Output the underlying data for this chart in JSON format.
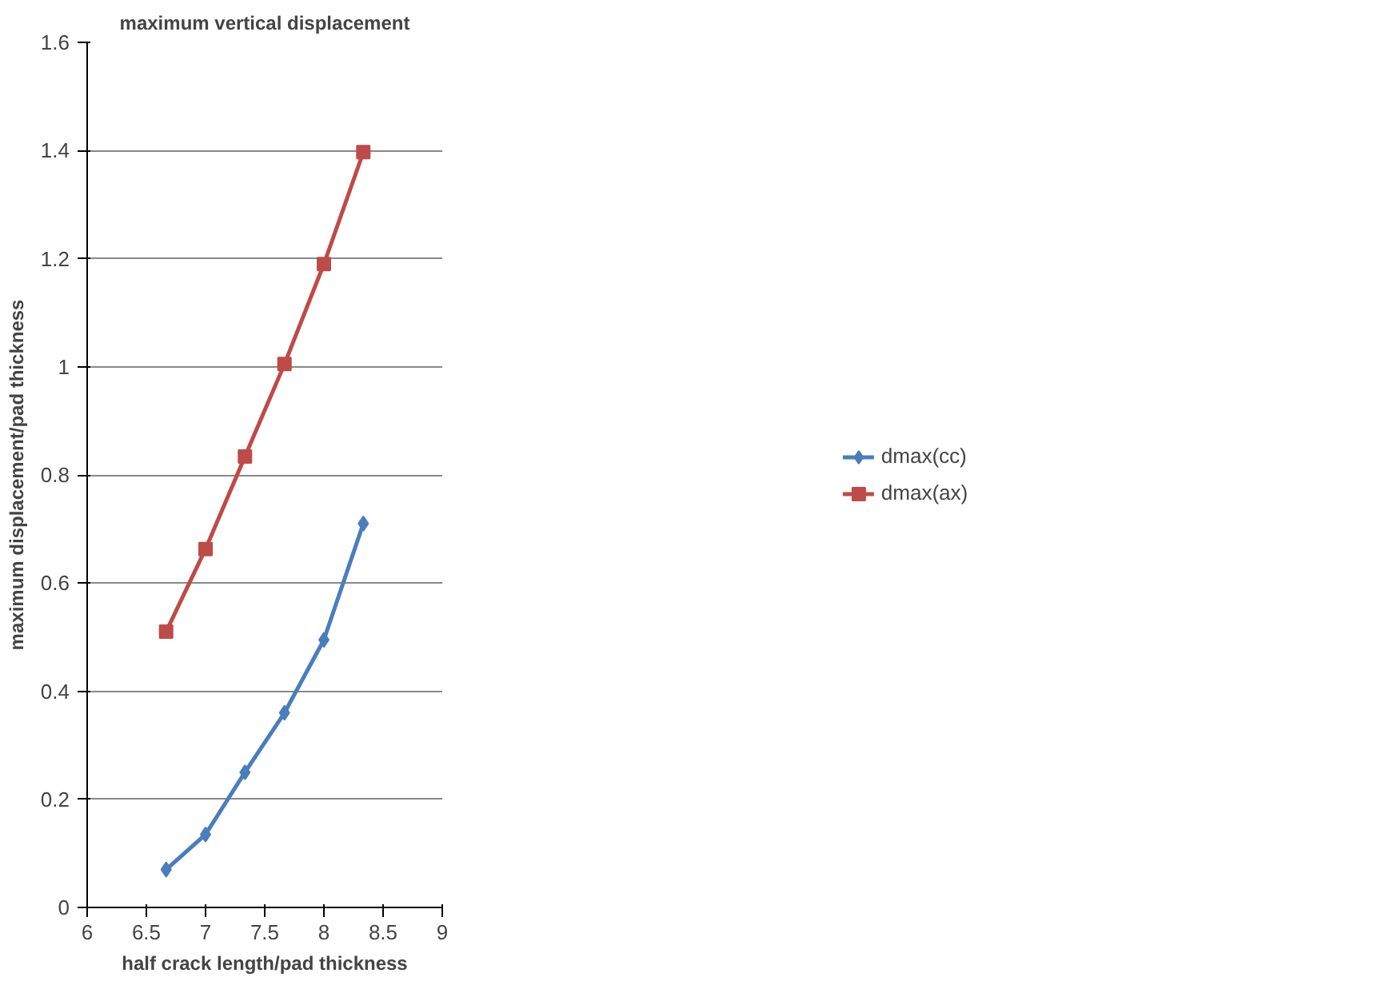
{
  "chart_data": {
    "type": "line",
    "title": "maximum vertical displacement",
    "xlabel": "half crack length/pad thickness",
    "ylabel": "maximum displacement/pad thickness",
    "x": [
      6.667,
      7,
      7.333,
      7.667,
      8,
      8.333
    ],
    "series": [
      {
        "name": "dmax(cc)",
        "color": "#4a7ebb",
        "marker": "diamond",
        "values": [
          0.07,
          0.135,
          0.25,
          0.36,
          0.495,
          0.71
        ]
      },
      {
        "name": "dmax(ax)",
        "color": "#be4b48",
        "marker": "square",
        "values": [
          0.51,
          0.663,
          0.834,
          1.005,
          1.19,
          1.397
        ]
      }
    ],
    "xlim": [
      6,
      9
    ],
    "xticks": [
      6,
      6.5,
      7,
      7.5,
      8,
      8.5,
      9
    ],
    "ylim": [
      0,
      1.6
    ],
    "yticks": [
      0,
      {
        "value": 0.2,
        "label": "0.2"
      },
      {
        "value": 0.4,
        "label": "0.4"
      },
      {
        "value": 0.6,
        "label": "0.6"
      },
      {
        "value": 0.8,
        "label": "0.8"
      },
      1,
      {
        "value": 1.2,
        "label": "1.2"
      },
      {
        "value": 1.4,
        "label": "1.4"
      },
      {
        "value": 1.6,
        "label": "1.6"
      }
    ],
    "grid": "y",
    "legend": "right",
    "line_style": "solid"
  }
}
